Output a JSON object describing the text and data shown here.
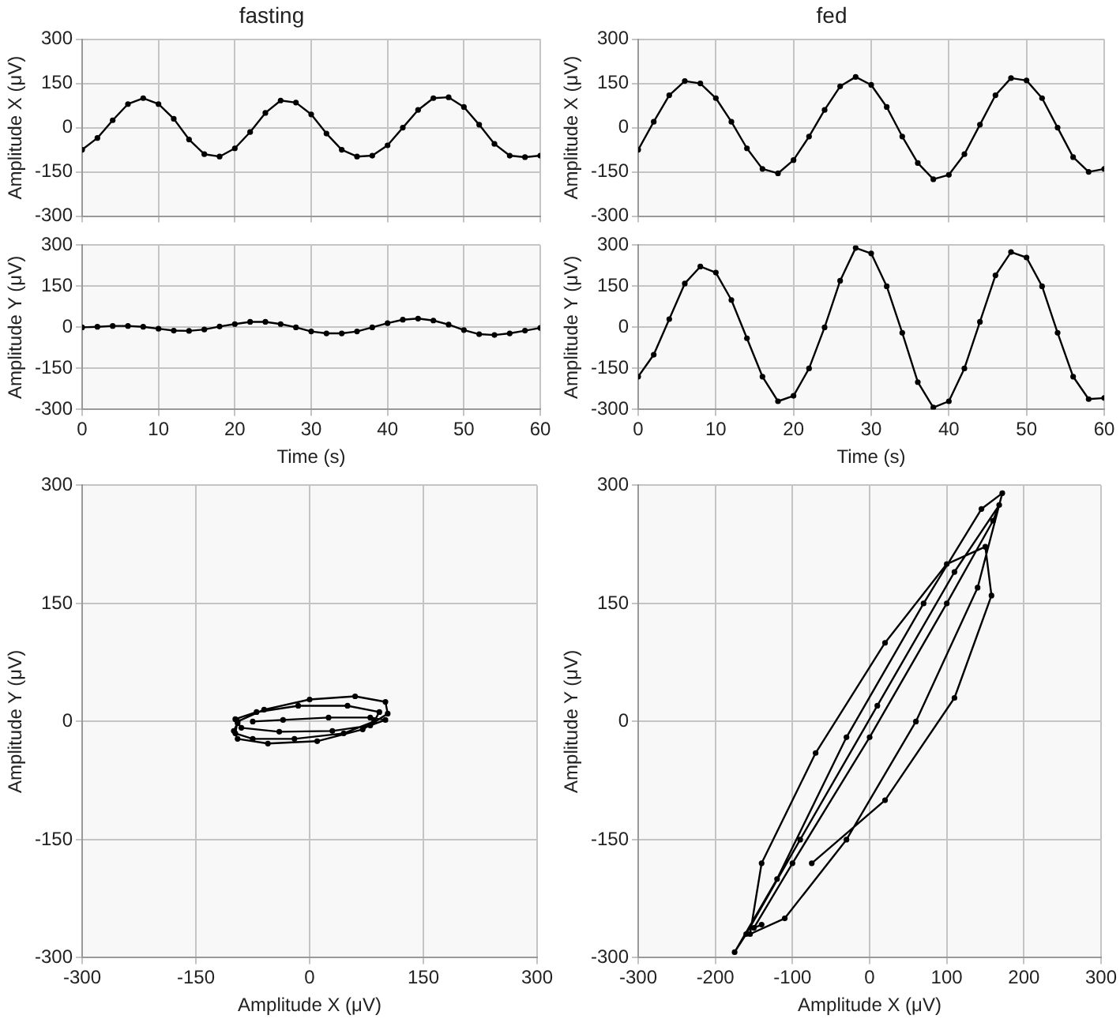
{
  "chart_data": [
    {
      "type": "line",
      "title": "fasting",
      "ylabel": "Amplitude X (μV)",
      "xlim": [
        0,
        60
      ],
      "xticks": [
        0,
        10,
        20,
        30,
        40,
        50,
        60
      ],
      "ylim": [
        -300,
        300
      ],
      "yticks": [
        -300,
        -150,
        0,
        150,
        300
      ],
      "tick_labels": "y",
      "grid": true,
      "marker": "circle",
      "line_style": "solid",
      "x": [
        0,
        2,
        4,
        6,
        8,
        10,
        12,
        14,
        16,
        18,
        20,
        22,
        24,
        26,
        28,
        30,
        32,
        34,
        36,
        38,
        40,
        42,
        44,
        46,
        48,
        50,
        52,
        54,
        56,
        58,
        60
      ],
      "series": [
        {
          "color": "#000000",
          "values": [
            -75,
            -35,
            25,
            80,
            100,
            80,
            30,
            -40,
            -90,
            -98,
            -70,
            -15,
            50,
            92,
            85,
            45,
            -20,
            -75,
            -98,
            -95,
            -60,
            0,
            60,
            100,
            103,
            70,
            10,
            -55,
            -95,
            -100,
            -95
          ]
        }
      ]
    },
    {
      "type": "line",
      "title": "fed",
      "ylabel": "Amplitude X (μV)",
      "xlim": [
        0,
        60
      ],
      "xticks": [
        0,
        10,
        20,
        30,
        40,
        50,
        60
      ],
      "ylim": [
        -300,
        300
      ],
      "yticks": [
        -300,
        -150,
        0,
        150,
        300
      ],
      "tick_labels": "y",
      "grid": true,
      "marker": "circle",
      "line_style": "solid",
      "x": [
        0,
        2,
        4,
        6,
        8,
        10,
        12,
        14,
        16,
        18,
        20,
        22,
        24,
        26,
        28,
        30,
        32,
        34,
        36,
        38,
        40,
        42,
        44,
        46,
        48,
        50,
        52,
        54,
        56,
        58,
        60
      ],
      "series": [
        {
          "color": "#000000",
          "values": [
            -75,
            20,
            110,
            158,
            150,
            100,
            20,
            -70,
            -140,
            -155,
            -110,
            -30,
            60,
            140,
            172,
            145,
            70,
            -30,
            -120,
            -175,
            -160,
            -90,
            10,
            110,
            168,
            160,
            100,
            0,
            -100,
            -150,
            -140
          ]
        }
      ]
    },
    {
      "type": "line",
      "xlabel": "Time (s)",
      "ylabel": "Amplitude Y (μV)",
      "xlim": [
        0,
        60
      ],
      "xticks": [
        0,
        10,
        20,
        30,
        40,
        50,
        60
      ],
      "ylim": [
        -300,
        300
      ],
      "yticks": [
        -300,
        -150,
        0,
        150,
        300
      ],
      "grid": true,
      "marker": "circle",
      "line_style": "solid",
      "x": [
        0,
        2,
        4,
        6,
        8,
        10,
        12,
        14,
        16,
        18,
        20,
        22,
        24,
        26,
        28,
        30,
        32,
        34,
        36,
        38,
        40,
        42,
        44,
        46,
        48,
        50,
        52,
        54,
        56,
        58,
        60
      ],
      "series": [
        {
          "color": "#000000",
          "values": [
            0,
            2,
            5,
            5,
            2,
            -5,
            -12,
            -13,
            -8,
            3,
            12,
            20,
            20,
            12,
            0,
            -15,
            -22,
            -22,
            -15,
            0,
            15,
            28,
            32,
            25,
            10,
            -10,
            -25,
            -28,
            -22,
            -12,
            -2
          ]
        }
      ]
    },
    {
      "type": "line",
      "xlabel": "Time (s)",
      "ylabel": "Amplitude Y (μV)",
      "xlim": [
        0,
        60
      ],
      "xticks": [
        0,
        10,
        20,
        30,
        40,
        50,
        60
      ],
      "ylim": [
        -300,
        300
      ],
      "yticks": [
        -300,
        -150,
        0,
        150,
        300
      ],
      "grid": true,
      "marker": "circle",
      "line_style": "solid",
      "x": [
        0,
        2,
        4,
        6,
        8,
        10,
        12,
        14,
        16,
        18,
        20,
        22,
        24,
        26,
        28,
        30,
        32,
        34,
        36,
        38,
        40,
        42,
        44,
        46,
        48,
        50,
        52,
        54,
        56,
        58,
        60
      ],
      "series": [
        {
          "color": "#000000",
          "values": [
            -180,
            -100,
            30,
            160,
            222,
            200,
            100,
            -40,
            -180,
            -270,
            -250,
            -150,
            0,
            170,
            290,
            270,
            150,
            -20,
            -200,
            -293,
            -270,
            -150,
            20,
            190,
            275,
            255,
            150,
            -20,
            -180,
            -262,
            -258
          ]
        }
      ]
    },
    {
      "type": "line",
      "xlabel": "Amplitude X (μV)",
      "ylabel": "Amplitude Y (μV)",
      "xlim": [
        -300,
        300
      ],
      "xticks": [
        -300,
        -150,
        0,
        150,
        300
      ],
      "ylim": [
        -300,
        300
      ],
      "yticks": [
        -300,
        -150,
        0,
        150,
        300
      ],
      "grid": true,
      "marker": "circle",
      "line_style": "solid",
      "series": [
        {
          "color": "#000000",
          "x": [
            -75,
            -35,
            25,
            80,
            100,
            80,
            30,
            -40,
            -90,
            -98,
            -70,
            -15,
            50,
            92,
            85,
            45,
            -20,
            -75,
            -98,
            -95,
            -60,
            0,
            60,
            100,
            103,
            70,
            10,
            -55,
            -95,
            -100,
            -95
          ],
          "values": [
            0,
            2,
            5,
            5,
            2,
            -5,
            -12,
            -13,
            -8,
            3,
            12,
            20,
            20,
            12,
            0,
            -15,
            -22,
            -22,
            -15,
            0,
            15,
            28,
            32,
            25,
            10,
            -10,
            -25,
            -28,
            -22,
            -12,
            -2
          ]
        }
      ]
    },
    {
      "type": "line",
      "xlabel": "Amplitude X (μV)",
      "ylabel": "Amplitude Y (μV)",
      "xlim": [
        -300,
        300
      ],
      "xticks": [
        -300,
        -200,
        -100,
        0,
        100,
        200,
        300
      ],
      "ylim": [
        -300,
        300
      ],
      "yticks": [
        -300,
        -150,
        0,
        150,
        300
      ],
      "grid": true,
      "marker": "circle",
      "line_style": "solid",
      "series": [
        {
          "color": "#000000",
          "x": [
            -75,
            20,
            110,
            158,
            150,
            100,
            20,
            -70,
            -140,
            -155,
            -110,
            -30,
            60,
            140,
            172,
            145,
            70,
            -30,
            -120,
            -175,
            -160,
            -90,
            10,
            110,
            168,
            160,
            100,
            0,
            -100,
            -150,
            -140
          ],
          "values": [
            -180,
            -100,
            30,
            160,
            222,
            200,
            100,
            -40,
            -180,
            -270,
            -250,
            -150,
            0,
            170,
            290,
            270,
            150,
            -20,
            -200,
            -293,
            -270,
            -150,
            20,
            190,
            275,
            255,
            150,
            -20,
            -180,
            -262,
            -258
          ]
        }
      ]
    }
  ]
}
